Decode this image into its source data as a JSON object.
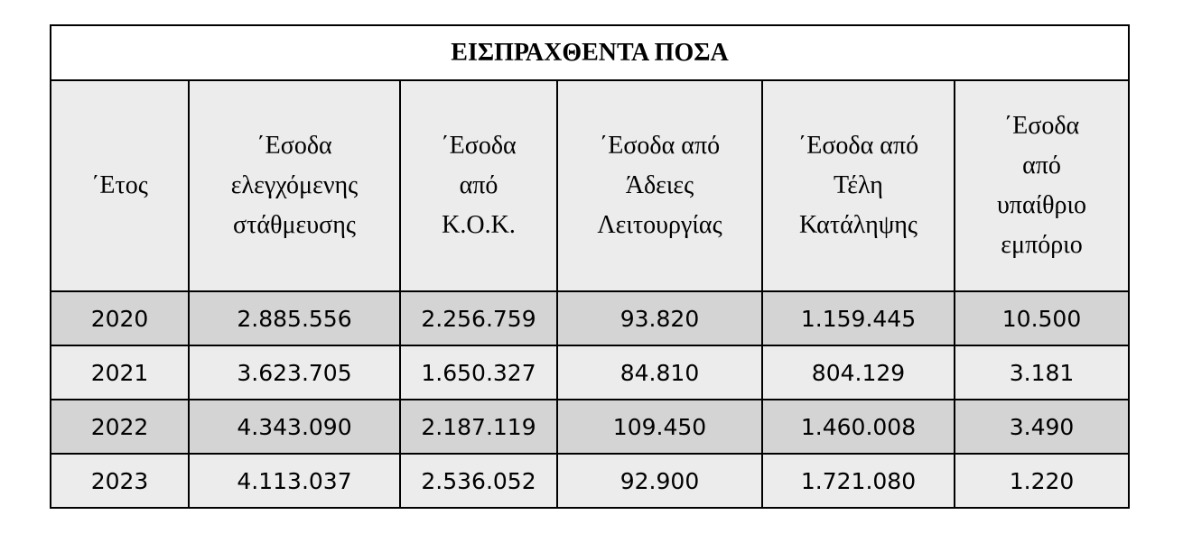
{
  "table": {
    "title": "ΕΙΣΠΡΑΧΘΕΝΤΑ ΠΟΣΑ",
    "headers": [
      [
        "΄Ετος"
      ],
      [
        "΄Εσοδα",
        "ελεγχόμενης",
        "στάθμευσης"
      ],
      [
        "΄Εσοδα",
        "από",
        "Κ.Ο.Κ."
      ],
      [
        "΄Εσοδα από",
        "Άδειες",
        "Λειτουργίας"
      ],
      [
        "΄Εσοδα από",
        "Τέλη",
        "Κατάληψης"
      ],
      [
        "΄Εσοδα",
        "από",
        "υπαίθριο",
        "εμπόριο"
      ]
    ],
    "rows": [
      [
        "2020",
        "2.885.556",
        "2.256.759",
        "93.820",
        "1.159.445",
        "10.500"
      ],
      [
        "2021",
        "3.623.705",
        "1.650.327",
        "84.810",
        "804.129",
        "3.181"
      ],
      [
        "2022",
        "4.343.090",
        "2.187.119",
        "109.450",
        "1.460.008",
        "3.490"
      ],
      [
        "2023",
        "4.113.037",
        "2.536.052",
        "92.900",
        "1.721.080",
        "1.220"
      ]
    ],
    "colors": {
      "header_bg": "#ececec",
      "row_dark_bg": "#d4d4d4",
      "row_light_bg": "#ececec",
      "border": "#000000"
    }
  }
}
